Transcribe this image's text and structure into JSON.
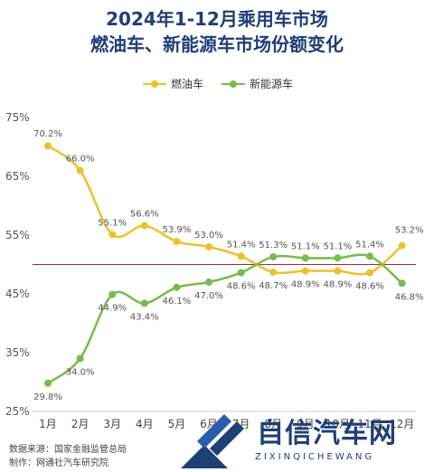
{
  "title_line1": "2024年1-12月乘用车市场",
  "title_line2": "燃油车、新能源车市场份额变化",
  "colors": {
    "fuel": "#eec12c",
    "nev": "#77bb4a",
    "title": "#1f3f77",
    "ref_line": "#a62a2a"
  },
  "chart_data": {
    "type": "line",
    "categories": [
      "1月",
      "2月",
      "3月",
      "4月",
      "5月",
      "6月",
      "7月",
      "8月",
      "9月",
      "10月",
      "11月",
      "12月"
    ],
    "series": [
      {
        "name": "燃油车",
        "color": "#eec12c",
        "values": [
          70.2,
          66.0,
          55.1,
          56.6,
          53.9,
          53.0,
          51.4,
          48.7,
          48.9,
          48.9,
          48.6,
          53.2
        ],
        "labels": [
          "70.2%",
          "66.0%",
          "55.1%",
          "56.6%",
          "53.9%",
          "53.0%",
          "51.4%",
          "48.7%",
          "48.9%",
          "48.9%",
          "48.6%",
          "53.2%"
        ]
      },
      {
        "name": "新能源车",
        "color": "#77bb4a",
        "values": [
          29.8,
          34.0,
          44.9,
          43.4,
          46.1,
          47.0,
          48.6,
          51.3,
          51.1,
          51.1,
          51.4,
          46.8
        ],
        "labels": [
          "29.8%",
          "34.0%",
          "44.9%",
          "43.4%",
          "46.1%",
          "47.0%",
          "48.6%",
          "51.3%",
          "51.1%",
          "51.1%",
          "51.4%",
          "46.8%"
        ]
      }
    ],
    "ylim": [
      25,
      75
    ],
    "yticks": [
      "25%",
      "35%",
      "45%",
      "55%",
      "65%",
      "75%"
    ],
    "ytick_values": [
      25,
      35,
      45,
      55,
      65,
      75
    ],
    "reference_line": 50,
    "legend": "top-center",
    "grid": false
  },
  "source_line1": "数据来源：国家金融监管总局",
  "source_line2": "制作：网通社汽车研究院",
  "watermark_text": "自信汽车网",
  "watermark_sub": "ZIXINQICHEWANG"
}
